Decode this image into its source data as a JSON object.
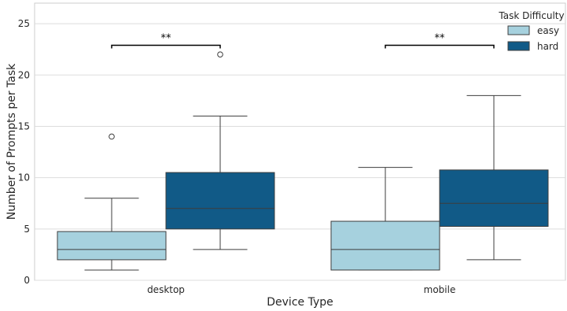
{
  "chart_data": {
    "type": "box",
    "xlabel": "Device Type",
    "ylabel": "Number of Prompts per Task",
    "ylim": [
      0,
      27
    ],
    "yticks": [
      0,
      5,
      10,
      15,
      20,
      25
    ],
    "grid": "horizontal",
    "legend_placement": "top-right",
    "legend_title": "Task Difficulty",
    "categories": [
      "desktop",
      "mobile"
    ],
    "series": [
      {
        "name": "easy",
        "color": "#a6d1de",
        "boxes": [
          {
            "category": "desktop",
            "whisker_low": 1,
            "q1": 2,
            "median": 3,
            "q3": 4.75,
            "whisker_high": 8,
            "outliers": [
              14
            ]
          },
          {
            "category": "mobile",
            "whisker_low": 1,
            "q1": 1,
            "median": 3,
            "q3": 5.75,
            "whisker_high": 11,
            "outliers": []
          }
        ]
      },
      {
        "name": "hard",
        "color": "#115a87",
        "boxes": [
          {
            "category": "desktop",
            "whisker_low": 3,
            "q1": 5,
            "median": 7,
            "q3": 10.5,
            "whisker_high": 16,
            "outliers": [
              22
            ]
          },
          {
            "category": "mobile",
            "whisker_low": 2,
            "q1": 5.25,
            "median": 7.5,
            "q3": 10.75,
            "whisker_high": 18,
            "outliers": []
          }
        ]
      }
    ],
    "annotations": [
      {
        "category": "desktop",
        "text": "**",
        "y": 22.9
      },
      {
        "category": "mobile",
        "text": "**",
        "y": 22.9
      }
    ]
  }
}
